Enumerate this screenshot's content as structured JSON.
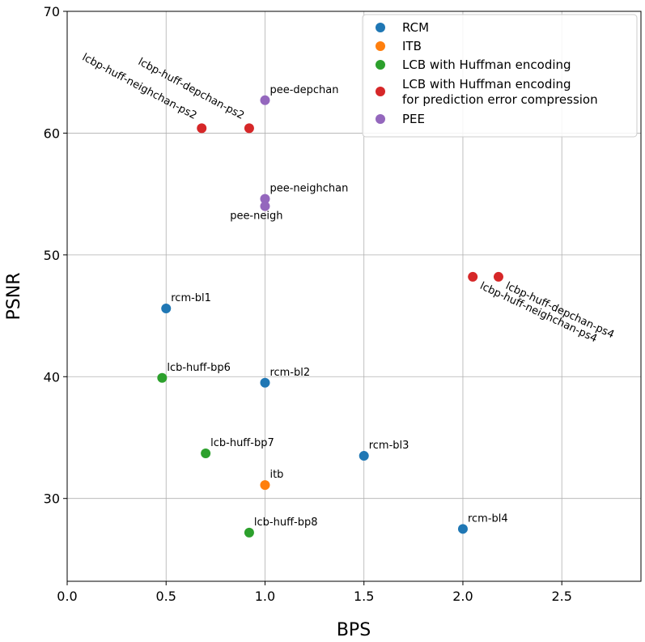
{
  "chart_data": {
    "type": "scatter",
    "xlabel": "BPS",
    "ylabel": "PSNR",
    "xlim": [
      0,
      2.9
    ],
    "ylim": [
      23.2,
      70
    ],
    "xticks": [
      "0.0",
      "0.5",
      "1.0",
      "1.5",
      "2.0",
      "2.5"
    ],
    "xtick_values": [
      0,
      0.5,
      1.0,
      1.5,
      2.0,
      2.5
    ],
    "yticks": [
      "30",
      "40",
      "50",
      "60",
      "70"
    ],
    "ytick_values": [
      30,
      40,
      50,
      60,
      70
    ],
    "grid": true,
    "legend_position": "top-right",
    "series": [
      {
        "name": "RCM",
        "color": "#1f77b4",
        "points": [
          {
            "x": 0.5,
            "y": 45.6,
            "label": "rcm-bl1"
          },
          {
            "x": 1.0,
            "y": 39.5,
            "label": "rcm-bl2"
          },
          {
            "x": 1.5,
            "y": 33.5,
            "label": "rcm-bl3"
          },
          {
            "x": 2.0,
            "y": 27.5,
            "label": "rcm-bl4"
          }
        ]
      },
      {
        "name": "ITB",
        "color": "#ff7f0e",
        "points": [
          {
            "x": 1.0,
            "y": 31.1,
            "label": "itb"
          }
        ]
      },
      {
        "name": "LCB with Huffman encoding",
        "color": "#2ca02c",
        "points": [
          {
            "x": 0.48,
            "y": 39.9,
            "label": "lcb-huff-bp6"
          },
          {
            "x": 0.7,
            "y": 33.7,
            "label": "lcb-huff-bp7"
          },
          {
            "x": 0.92,
            "y": 27.2,
            "label": "lcb-huff-bp8"
          }
        ]
      },
      {
        "name": "LCB with Huffman encoding\nfor prediction error compression",
        "name_lines": [
          "LCB with Huffman encoding",
          "for prediction error compression"
        ],
        "color": "#d62728",
        "points": [
          {
            "x": 0.68,
            "y": 60.4,
            "label": "lcbp-huff-neighchan-ps2"
          },
          {
            "x": 0.92,
            "y": 60.4,
            "label": "lcbp-huff-depchan-ps2"
          },
          {
            "x": 2.05,
            "y": 48.2,
            "label": "lcbp-huff-neighchan-ps4"
          },
          {
            "x": 2.18,
            "y": 48.2,
            "label": "lcbp-huff-depchan-ps4"
          }
        ]
      },
      {
        "name": "PEE",
        "color": "#9467bd",
        "points": [
          {
            "x": 1.0,
            "y": 62.7,
            "label": "pee-depchan"
          },
          {
            "x": 1.0,
            "y": 54.6,
            "label": "pee-neighchan"
          },
          {
            "x": 1.0,
            "y": 54.0,
            "label": "pee-neigh"
          }
        ]
      }
    ]
  }
}
